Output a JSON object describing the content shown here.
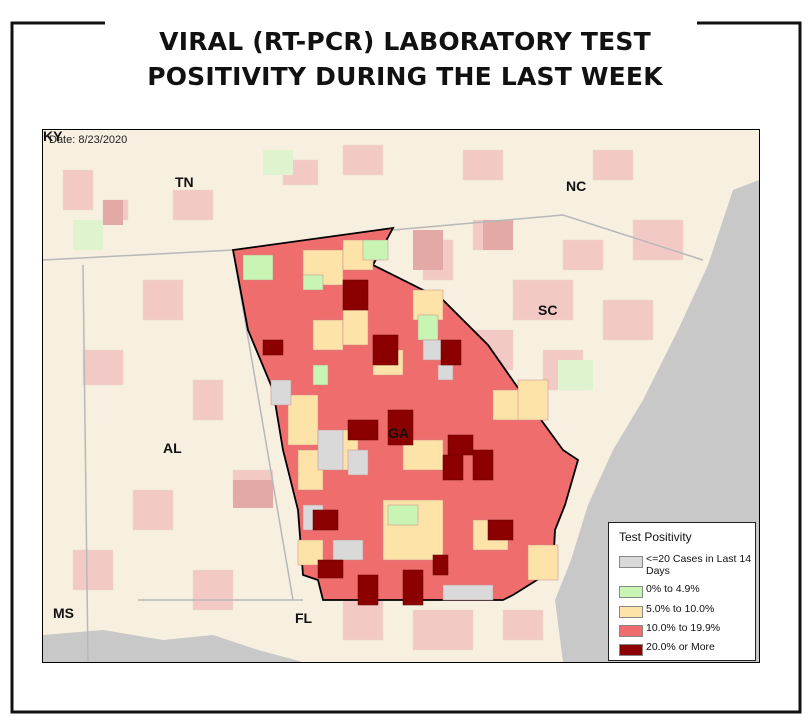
{
  "title_line1": "VIRAL (RT-PCR) LABORATORY TEST",
  "title_line2": "POSITIVITY DURING THE LAST WEEK",
  "map": {
    "date_label": "Date: 8/23/2020",
    "states": {
      "ky": "KY",
      "tn": "TN",
      "nc": "NC",
      "sc": "SC",
      "ga": "GA",
      "al": "AL",
      "ms": "MS",
      "fl": "FL"
    }
  },
  "legend": {
    "title": "Test Positivity",
    "items": [
      {
        "label": "<=20 Cases in Last 14 Days",
        "color": "#d9d9d9"
      },
      {
        "label": "0% to 4.9%",
        "color": "#c8f5b4"
      },
      {
        "label": "5.0% to 10.0%",
        "color": "#fde3a7"
      },
      {
        "label": "10.0% to 19.9%",
        "color": "#ef6d6d"
      },
      {
        "label": "20.0% or More",
        "color": "#8b0000"
      }
    ]
  },
  "colors": {
    "outside_light": "#f7f0e2",
    "outside_pink": "#f3c9c6",
    "water": "#c9c9c9"
  }
}
